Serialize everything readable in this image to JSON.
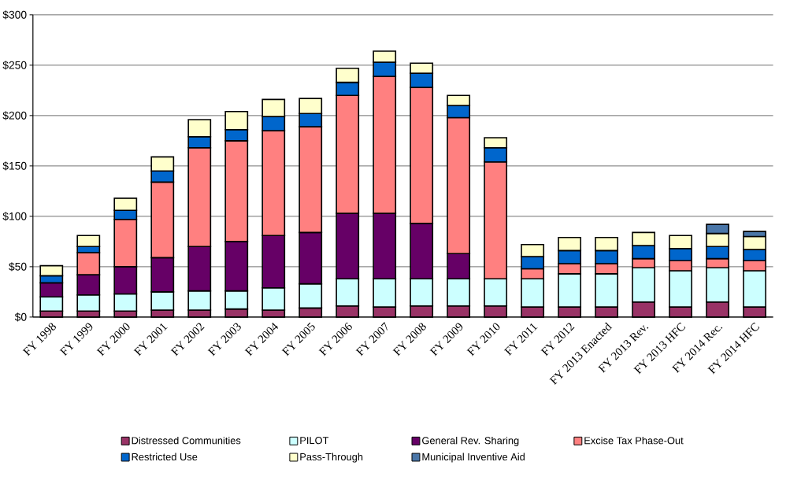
{
  "chart_data": {
    "type": "bar",
    "stacked": true,
    "categories": [
      "FY 1998",
      "FY 1999",
      "FY 2000",
      "FY 2001",
      "FY 2002",
      "FY 2003",
      "FY 2004",
      "FY 2005",
      "FY 2006",
      "FY 2007",
      "FY 2008",
      "FY 2009",
      "FY 2010",
      "FY 2011",
      "FY 2012",
      "FY 2013 Enacted",
      "FY 2013 Rev.",
      "FY 2013 HFC",
      "FY 2014 Rec.",
      "FY 2014 HFC"
    ],
    "series": [
      {
        "name": "Distressed Communities",
        "color": "#993366",
        "values": [
          6,
          6,
          6,
          7,
          7,
          8,
          7,
          9,
          11,
          10,
          11,
          11,
          11,
          10,
          10,
          10,
          15,
          10,
          15,
          10
        ]
      },
      {
        "name": "PILOT",
        "color": "#ccffff",
        "values": [
          14,
          16,
          17,
          18,
          19,
          18,
          22,
          24,
          27,
          28,
          27,
          27,
          27,
          28,
          33,
          33,
          34,
          36,
          34,
          36
        ]
      },
      {
        "name": "General Rev. Sharing",
        "color": "#660066",
        "values": [
          14,
          20,
          27,
          34,
          44,
          49,
          52,
          51,
          65,
          65,
          55,
          25,
          null,
          null,
          null,
          null,
          null,
          null,
          null,
          null
        ]
      },
      {
        "name": "Excise Tax Phase-Out",
        "color": "#ff8080",
        "values": [
          null,
          22,
          47,
          75,
          98,
          100,
          104,
          105,
          117,
          136,
          135,
          135,
          116,
          10,
          10,
          10,
          9,
          10,
          9,
          10
        ]
      },
      {
        "name": "Restricted Use",
        "color": "#0066cc",
        "values": [
          7,
          6,
          9,
          11,
          11,
          11,
          14,
          13,
          13,
          14,
          14,
          12,
          14,
          12,
          13,
          13,
          13,
          12,
          12,
          11
        ]
      },
      {
        "name": "Pass-Through",
        "color": "#ffffcc",
        "values": [
          10,
          11,
          12,
          14,
          17,
          18,
          17,
          15,
          14,
          11,
          10,
          10,
          10,
          12,
          13,
          13,
          13,
          13,
          13,
          13
        ]
      },
      {
        "name": "Municipal Inventive Aid",
        "color": "#4a76a8",
        "values": [
          null,
          null,
          null,
          null,
          null,
          null,
          null,
          null,
          null,
          null,
          null,
          null,
          null,
          null,
          null,
          null,
          null,
          null,
          9,
          5
        ]
      }
    ],
    "ylim": [
      0,
      300
    ],
    "yticks": [
      {
        "value": 0,
        "label": "$0"
      },
      {
        "value": 50,
        "label": "$50"
      },
      {
        "value": 100,
        "label": "$100"
      },
      {
        "value": 150,
        "label": "$150"
      },
      {
        "value": 200,
        "label": "$200"
      },
      {
        "value": 250,
        "label": "$250"
      },
      {
        "value": 300,
        "label": "$300"
      }
    ],
    "grid": "y",
    "legend": "bottom"
  }
}
